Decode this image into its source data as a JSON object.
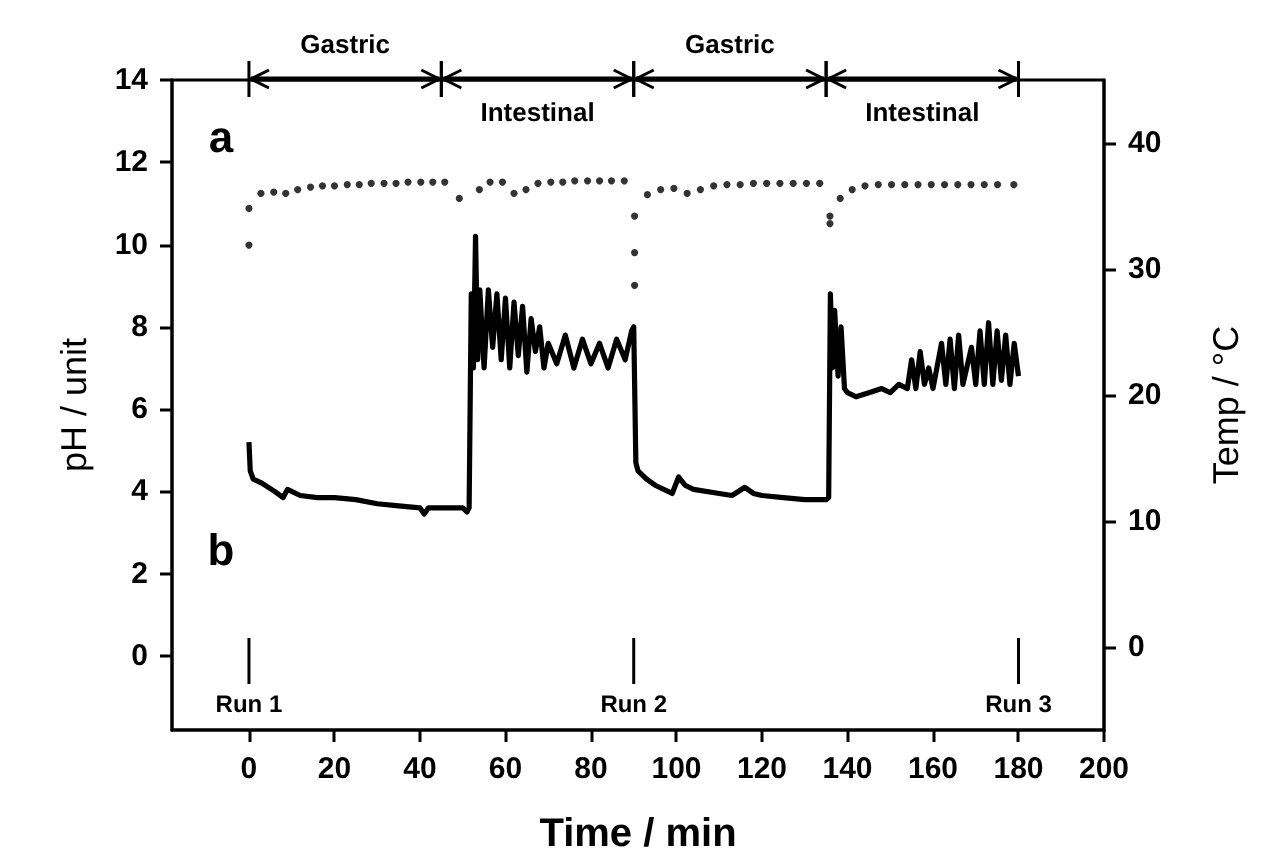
{
  "chart_data": {
    "type": "line",
    "xlabel": "Time / min",
    "ylabel": "pH / unit",
    "y2label": "Temp / °C",
    "xlim": [
      -18,
      200
    ],
    "xticks": [
      0,
      20,
      40,
      60,
      80,
      100,
      120,
      140,
      160,
      180,
      200
    ],
    "grid": false,
    "ylim": [
      -1.8,
      14
    ],
    "yticks": [
      0,
      2,
      4,
      6,
      8,
      10,
      12,
      14
    ],
    "y2lim": [
      -6.6,
      45
    ],
    "y2ticks": [
      0,
      10,
      20,
      30,
      40
    ],
    "series": [
      {
        "name": "b",
        "color": "#000000",
        "x": [
          0,
          0.3,
          1,
          3,
          6,
          8,
          9,
          12,
          16,
          20,
          25,
          30,
          35,
          40,
          41,
          42,
          46,
          50,
          51,
          51.5,
          52,
          52.5,
          53,
          53.5,
          54,
          55,
          56,
          57,
          58,
          59,
          60,
          61,
          62,
          63,
          64,
          65,
          66,
          67,
          68,
          69,
          70,
          72,
          74,
          76,
          78,
          80,
          82,
          84,
          86,
          88,
          89.5,
          90,
          90.5,
          91,
          93,
          95,
          99,
          100.5,
          102,
          104,
          110,
          113,
          116,
          118,
          120,
          125,
          130,
          135,
          135.6,
          136,
          136.5,
          137,
          137.8,
          138.5,
          139.3,
          140,
          142,
          145,
          148,
          150,
          152,
          154,
          155,
          156,
          157,
          158,
          159,
          160,
          162,
          163,
          164,
          165,
          166,
          167,
          169,
          170,
          171,
          172,
          173,
          174,
          175,
          176,
          177,
          178,
          179,
          180
        ],
        "values": [
          5.2,
          4.5,
          4.3,
          4.2,
          4.0,
          3.85,
          4.05,
          3.9,
          3.85,
          3.85,
          3.8,
          3.7,
          3.65,
          3.6,
          3.45,
          3.6,
          3.6,
          3.6,
          3.5,
          3.6,
          8.8,
          7.0,
          10.2,
          7.2,
          8.9,
          7.0,
          8.9,
          7.5,
          8.8,
          7.2,
          8.7,
          7.0,
          8.6,
          7.3,
          8.5,
          6.9,
          8.2,
          7.4,
          8.0,
          7.0,
          7.6,
          7.1,
          7.8,
          7.0,
          7.7,
          7.1,
          7.6,
          7.0,
          7.7,
          7.2,
          7.9,
          8.0,
          4.7,
          4.5,
          4.3,
          4.15,
          3.95,
          4.35,
          4.15,
          4.05,
          3.95,
          3.9,
          4.1,
          3.95,
          3.9,
          3.85,
          3.8,
          3.8,
          3.85,
          8.8,
          7.0,
          8.4,
          6.8,
          8.0,
          6.5,
          6.4,
          6.3,
          6.4,
          6.5,
          6.4,
          6.6,
          6.5,
          7.2,
          6.5,
          7.4,
          6.6,
          7.0,
          6.5,
          7.6,
          6.6,
          7.7,
          6.5,
          7.8,
          6.6,
          7.5,
          6.6,
          7.9,
          6.6,
          8.1,
          6.6,
          7.9,
          6.7,
          7.8,
          6.6,
          7.6,
          6.8
        ]
      },
      {
        "name": "a",
        "type": "scatter",
        "axis": "y2",
        "color": "#000000",
        "x": [
          0,
          0,
          2.8,
          5.8,
          8.6,
          11.4,
          14.4,
          17.2,
          20,
          23,
          25.8,
          28.6,
          31.6,
          34.4,
          37.2,
          40.2,
          43,
          45.8,
          49.2,
          53.9,
          56.4,
          59.3,
          62,
          64.8,
          67.6,
          70.6,
          73.4,
          76.2,
          79.2,
          82,
          84.8,
          87.8,
          90.2,
          90.2,
          90.2,
          93.2,
          96.3,
          99.4,
          102.5,
          105.6,
          108.7,
          111.8,
          114.9,
          118,
          121.1,
          124.2,
          127.3,
          130.4,
          133.5,
          135.9,
          135.9,
          138.3,
          141.1,
          144.1,
          147.2,
          150.3,
          153.4,
          156.5,
          159.6,
          162.7,
          165.8,
          168.9,
          172,
          175.1,
          178.9
        ],
        "values": [
          31.9,
          34.8,
          36.0,
          36.1,
          36.0,
          36.3,
          36.5,
          36.6,
          36.6,
          36.7,
          36.7,
          36.8,
          36.8,
          36.8,
          36.9,
          36.9,
          36.9,
          36.9,
          35.6,
          36.3,
          36.9,
          36.9,
          36.0,
          36.3,
          36.8,
          36.9,
          36.9,
          37.0,
          37.0,
          37.0,
          37.0,
          37.0,
          34.2,
          31.3,
          28.7,
          35.9,
          36.3,
          36.4,
          36.0,
          36.3,
          36.6,
          36.7,
          36.7,
          36.8,
          36.8,
          36.8,
          36.8,
          36.8,
          36.8,
          34.2,
          33.6,
          35.6,
          36.3,
          36.6,
          36.7,
          36.7,
          36.7,
          36.7,
          36.7,
          36.7,
          36.7,
          36.7,
          36.7,
          36.7,
          36.7
        ]
      }
    ],
    "annotations": [
      "Gastric",
      "Intestinal",
      "Gastric",
      "Intestinal"
    ],
    "ref_lines": [
      {
        "axis": "x",
        "value": 0,
        "label": "Run 1"
      },
      {
        "axis": "x",
        "value": 90,
        "label": "Run 2"
      },
      {
        "axis": "x",
        "value": 180,
        "label": "Run 3"
      }
    ]
  }
}
